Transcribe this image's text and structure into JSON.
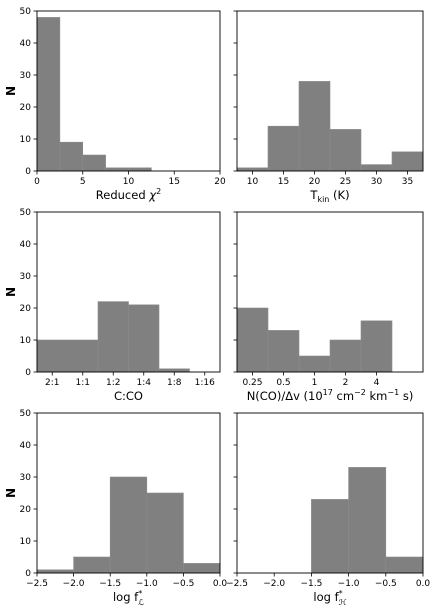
{
  "chart_data": [
    {
      "id": "chi2",
      "type": "bar",
      "xlim": [
        0,
        20
      ],
      "ylim": [
        0,
        50
      ],
      "ylabel": "N",
      "xlabel": "Reduced χ²",
      "xticks": [
        {
          "v": 0,
          "label": "0"
        },
        {
          "v": 5,
          "label": "5"
        },
        {
          "v": 10,
          "label": "10"
        },
        {
          "v": 15,
          "label": "15"
        },
        {
          "v": 20,
          "label": "20"
        }
      ],
      "yticks": [
        0,
        10,
        20,
        30,
        40,
        50
      ],
      "show_ytick_labels": true,
      "bins": [
        [
          0,
          2.5,
          48
        ],
        [
          2.5,
          5,
          9
        ],
        [
          5,
          7.5,
          5
        ],
        [
          7.5,
          10,
          1
        ],
        [
          10,
          12.5,
          1
        ],
        [
          12.5,
          15,
          0
        ],
        [
          15,
          17.5,
          0
        ],
        [
          17.5,
          20,
          0
        ]
      ]
    },
    {
      "id": "tkin",
      "type": "bar",
      "xlim": [
        7.5,
        37.5
      ],
      "ylim": [
        0,
        50
      ],
      "ylabel": "",
      "xlabel": "T_kin (K)",
      "xticks": [
        {
          "v": 10,
          "label": "10"
        },
        {
          "v": 15,
          "label": "15"
        },
        {
          "v": 20,
          "label": "20"
        },
        {
          "v": 25,
          "label": "25"
        },
        {
          "v": 30,
          "label": "30"
        },
        {
          "v": 35,
          "label": "35"
        }
      ],
      "yticks": [
        0,
        10,
        20,
        30,
        40,
        50
      ],
      "show_ytick_labels": false,
      "bins": [
        [
          7.5,
          12.5,
          1
        ],
        [
          12.5,
          17.5,
          14
        ],
        [
          17.5,
          22.5,
          28
        ],
        [
          22.5,
          27.5,
          13
        ],
        [
          27.5,
          32.5,
          2
        ],
        [
          32.5,
          37.5,
          6
        ]
      ]
    },
    {
      "id": "cco",
      "type": "bar",
      "xlim": [
        0,
        12
      ],
      "ylim": [
        0,
        50
      ],
      "ylabel": "N",
      "xlabel": "C:CO",
      "xticks": [
        {
          "v": 1,
          "label": "2:1"
        },
        {
          "v": 3,
          "label": "1:1"
        },
        {
          "v": 5,
          "label": "1:2"
        },
        {
          "v": 7,
          "label": "1:4"
        },
        {
          "v": 9,
          "label": "1:8"
        },
        {
          "v": 11,
          "label": "1:16"
        }
      ],
      "yticks": [
        0,
        10,
        20,
        30,
        40,
        50
      ],
      "show_ytick_labels": true,
      "bins": [
        [
          0,
          4,
          10
        ],
        [
          4,
          6,
          22
        ],
        [
          6,
          8,
          21
        ],
        [
          8,
          10,
          1
        ],
        [
          10,
          12,
          0
        ]
      ]
    },
    {
      "id": "ncodv",
      "type": "bar",
      "xlim": [
        0,
        12
      ],
      "ylim": [
        0,
        50
      ],
      "ylabel": "",
      "xlabel": "N(CO)/Δv (10¹⁷ cm⁻² km⁻¹ s)",
      "xticks": [
        {
          "v": 1,
          "label": "0.25"
        },
        {
          "v": 3,
          "label": "0.5"
        },
        {
          "v": 5,
          "label": "1"
        },
        {
          "v": 7,
          "label": "2"
        },
        {
          "v": 9,
          "label": "4"
        }
      ],
      "yticks": [
        0,
        10,
        20,
        30,
        40,
        50
      ],
      "show_ytick_labels": false,
      "bins": [
        [
          0,
          2,
          20
        ],
        [
          2,
          4,
          13
        ],
        [
          4,
          6,
          5
        ],
        [
          6,
          8,
          10
        ],
        [
          8,
          10,
          16
        ]
      ]
    },
    {
      "id": "logfL",
      "type": "bar",
      "xlim": [
        -2.5,
        0.0
      ],
      "ylim": [
        0,
        50
      ],
      "ylabel": "N",
      "xlabel": "log f*_L",
      "xticks": [
        {
          "v": -2.5,
          "label": "−2.5"
        },
        {
          "v": -2.0,
          "label": "−2.0"
        },
        {
          "v": -1.5,
          "label": "−1.5"
        },
        {
          "v": -1.0,
          "label": "−1.0"
        },
        {
          "v": -0.5,
          "label": "−0.5"
        },
        {
          "v": 0.0,
          "label": "0.0"
        }
      ],
      "yticks": [
        0,
        10,
        20,
        30,
        40,
        50
      ],
      "show_ytick_labels": true,
      "bins": [
        [
          -2.5,
          -2.0,
          1
        ],
        [
          -2.0,
          -1.5,
          5
        ],
        [
          -1.5,
          -1.0,
          30
        ],
        [
          -1.0,
          -0.5,
          25
        ],
        [
          -0.5,
          0.0,
          3
        ]
      ]
    },
    {
      "id": "logfH",
      "type": "bar",
      "xlim": [
        -2.5,
        0.0
      ],
      "ylim": [
        0,
        50
      ],
      "ylabel": "",
      "xlabel": "log f*_H",
      "xticks": [
        {
          "v": -2.5,
          "label": "−2.5"
        },
        {
          "v": -2.0,
          "label": "−2.0"
        },
        {
          "v": -1.5,
          "label": "−1.5"
        },
        {
          "v": -1.0,
          "label": "−1.0"
        },
        {
          "v": -0.5,
          "label": "−0.5"
        },
        {
          "v": 0.0,
          "label": "0.0"
        }
      ],
      "yticks": [
        0,
        10,
        20,
        30,
        40,
        50
      ],
      "show_ytick_labels": false,
      "bins": [
        [
          -1.5,
          -1.0,
          23
        ],
        [
          -1.0,
          -0.5,
          33
        ],
        [
          -0.5,
          0.0,
          5
        ]
      ]
    }
  ],
  "style": {
    "bar_color": "#808080",
    "bar_edge": "#8c8c8c",
    "grid": false
  }
}
